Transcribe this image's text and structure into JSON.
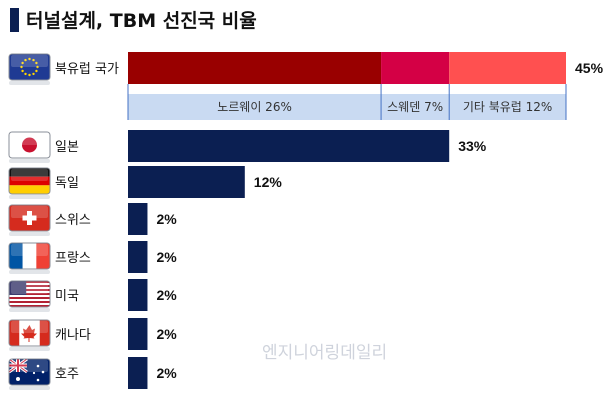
{
  "title": "터널설계, TBM 선진국 비율",
  "watermark": "엔지니어링데일리",
  "colors": {
    "bar": "#0b1f52",
    "title_mark": "#0b1f52",
    "segments": [
      "#990000",
      "#d40045",
      "#ff5050"
    ],
    "subsection_bg": "#c9daf2",
    "subsection_line": "#4472c4"
  },
  "chart_data": {
    "type": "bar",
    "orientation": "horizontal",
    "title": "터널설계, TBM 선진국 비율",
    "categories": [
      "북유럽 국가",
      "일본",
      "독일",
      "스위스",
      "프랑스",
      "미국",
      "캐나다",
      "호주"
    ],
    "values": [
      45,
      33,
      12,
      2,
      2,
      2,
      2,
      2
    ],
    "value_labels": [
      "45%",
      "33%",
      "12%",
      "2%",
      "2%",
      "2%",
      "2%",
      "2%"
    ],
    "flags": [
      "eu-flag-icon",
      "japan-flag-icon",
      "germany-flag-icon",
      "switzerland-flag-icon",
      "france-flag-icon",
      "usa-flag-icon",
      "canada-flag-icon",
      "australia-flag-icon"
    ],
    "stacked_first": {
      "category": "북유럽 국가",
      "segments": [
        {
          "label": "노르웨이 26%",
          "value": 26
        },
        {
          "label": "스웨덴 7%",
          "value": 7
        },
        {
          "label": "기타 북유럽 12%",
          "value": 12
        }
      ]
    },
    "xlim": [
      0,
      45
    ],
    "grid": false,
    "legend": "none"
  }
}
